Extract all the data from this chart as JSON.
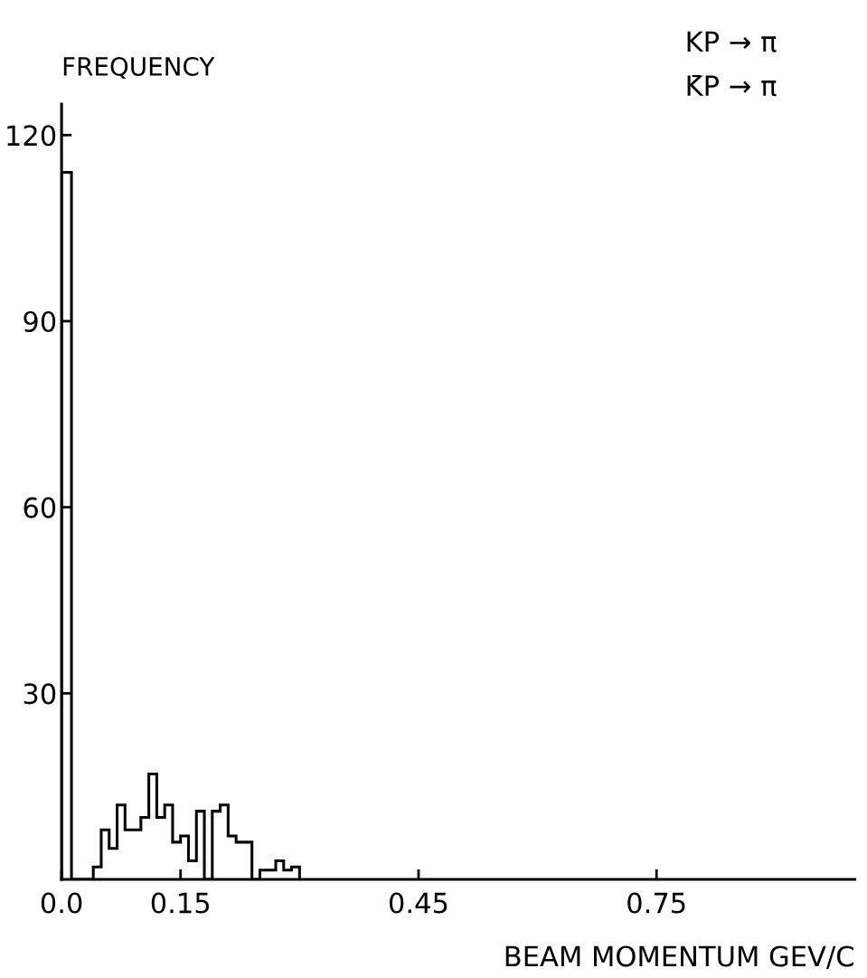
{
  "chart_data": {
    "type": "histogram",
    "ylabel": "FREQUENCY",
    "xlabel": "BEAM MOMENTUM GEV/C",
    "annotations": [
      "KP → π",
      "K̄P → π"
    ],
    "bins": [
      0.0,
      0.0125,
      0.04,
      0.05,
      0.06,
      0.07,
      0.08,
      0.1,
      0.11,
      0.12,
      0.13,
      0.14,
      0.15,
      0.16,
      0.17,
      0.18,
      0.19,
      0.2,
      0.21,
      0.22,
      0.24,
      0.25,
      0.27,
      0.28,
      0.29,
      0.3
    ],
    "values": [
      114,
      0,
      2,
      8,
      5,
      12,
      8,
      10,
      17,
      10,
      12,
      6,
      7,
      3,
      11,
      0,
      11,
      12,
      7,
      6,
      0,
      1.5,
      3,
      1.5,
      2
    ],
    "color": "#000000",
    "xlim": [
      0,
      1.0
    ],
    "ylim": [
      0,
      125
    ],
    "xticks": [
      {
        "value": 0,
        "label": "0.0"
      },
      0.15,
      0.45,
      0.75
    ],
    "yticks": [
      30,
      60,
      90,
      120
    ],
    "grid": false,
    "legend": false
  }
}
